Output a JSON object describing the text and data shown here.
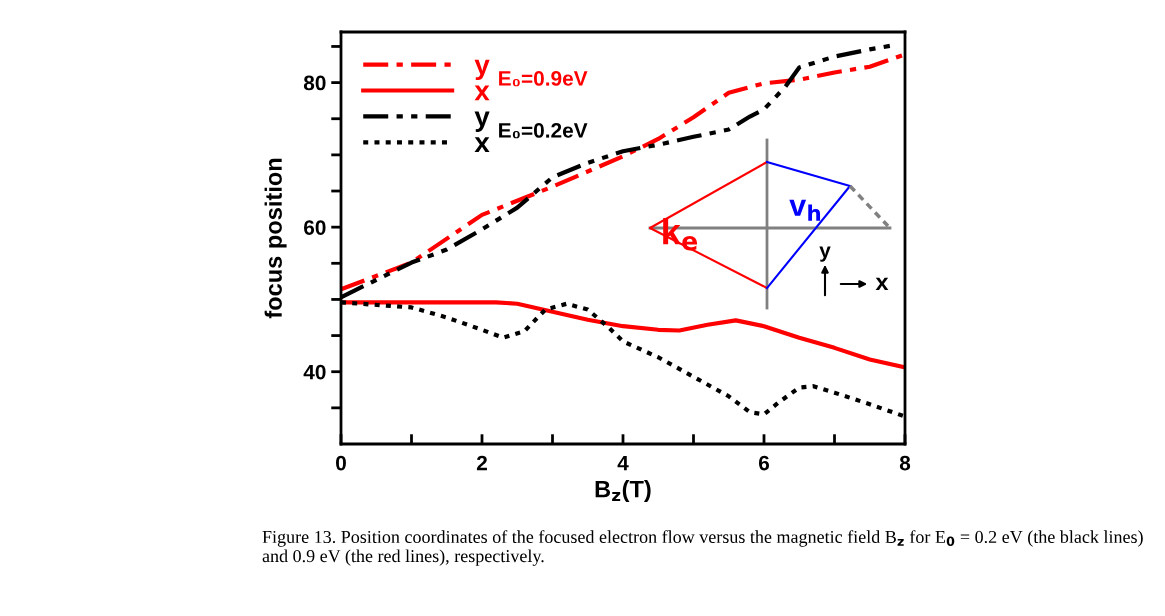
{
  "chart_data": {
    "type": "line",
    "xlabel": "B$_{z}$(T)",
    "ylabel": "focus position",
    "xlim": [
      0,
      8
    ],
    "xticks": [
      0,
      {
        "value": 1,
        "label": null
      },
      2,
      {
        "value": 3,
        "label": null
      },
      4,
      {
        "value": 5,
        "label": null
      },
      6,
      {
        "value": 7,
        "label": null
      },
      8
    ],
    "ylim": [
      30,
      87
    ],
    "yticks": [
      {
        "value": 35,
        "label": null
      },
      40,
      {
        "value": 45,
        "label": null
      },
      {
        "value": 50,
        "label": null
      },
      {
        "value": 55,
        "label": null
      },
      60,
      {
        "value": 65,
        "label": null
      },
      {
        "value": 70,
        "label": null
      },
      {
        "value": 75,
        "label": null
      },
      80,
      {
        "value": 85,
        "label": null
      }
    ],
    "grid": false,
    "legend": "top left",
    "marker": "none",
    "series": [
      {
        "name": "y",
        "color": "#ff0000",
        "line_style": "dashdot",
        "x": [
          0,
          1,
          2,
          3,
          4,
          4.5,
          5,
          5.5,
          6,
          6.5,
          7,
          7.5,
          8
        ],
        "values": [
          51.4,
          55.1,
          61.7,
          65.6,
          69.8,
          72.2,
          75.2,
          78.6,
          79.9,
          80.4,
          81.4,
          82.2,
          83.9
        ]
      },
      {
        "name": "x",
        "color": "#ff0000",
        "line_style": "solid",
        "x": [
          0,
          1,
          2,
          2.2,
          2.5,
          3,
          3.5,
          4,
          4.5,
          4.8,
          5.2,
          5.6,
          6,
          6.5,
          7,
          7.5,
          8
        ],
        "values": [
          49.6,
          49.6,
          49.6,
          49.6,
          49.4,
          48.3,
          47.2,
          46.3,
          45.8,
          45.7,
          46.5,
          47.1,
          46.3,
          44.7,
          43.3,
          41.7,
          40.6
        ]
      },
      {
        "name": "y",
        "color": "#000000",
        "line_style": "dashdotdot",
        "x": [
          0,
          1,
          1.5,
          2,
          2.5,
          3,
          3.5,
          4,
          4.5,
          5,
          5.5,
          5.8,
          6,
          6.3,
          6.5,
          7,
          7.5,
          7.8
        ],
        "values": [
          50.3,
          55.1,
          56.9,
          59.7,
          62.7,
          66.9,
          68.9,
          70.5,
          71.4,
          72.5,
          73.5,
          75.3,
          76.3,
          79.4,
          82.1,
          83.6,
          84.6,
          85.1
        ]
      },
      {
        "name": "x",
        "color": "#000000",
        "line_style": "dotted",
        "x": [
          0,
          1,
          1.5,
          2,
          2.3,
          2.6,
          2.9,
          3.2,
          3.5,
          3.8,
          4,
          4.5,
          5,
          5.5,
          5.8,
          6,
          6.2,
          6.5,
          6.7,
          7,
          7.5,
          8
        ],
        "values": [
          49.6,
          48.9,
          47.5,
          45.8,
          44.7,
          45.6,
          48.6,
          49.4,
          48.6,
          46.1,
          44.2,
          42.0,
          39.3,
          36.6,
          34.4,
          34.1,
          35.7,
          37.8,
          38.0,
          37.1,
          35.5,
          33.8
        ]
      }
    ],
    "annotations": [
      "E₀=0.9eV",
      "E₀=0.2eV",
      "k$_{e}$",
      "v$_{h}$",
      "y",
      "x",
      "Figure 13. Position coordinates of the focused electron flow versus the magnetic field B$_{z}$ for E$_{0}$ = 0.2 eV (the black lines) and 0.9 eV (the red lines), respectively."
    ]
  }
}
